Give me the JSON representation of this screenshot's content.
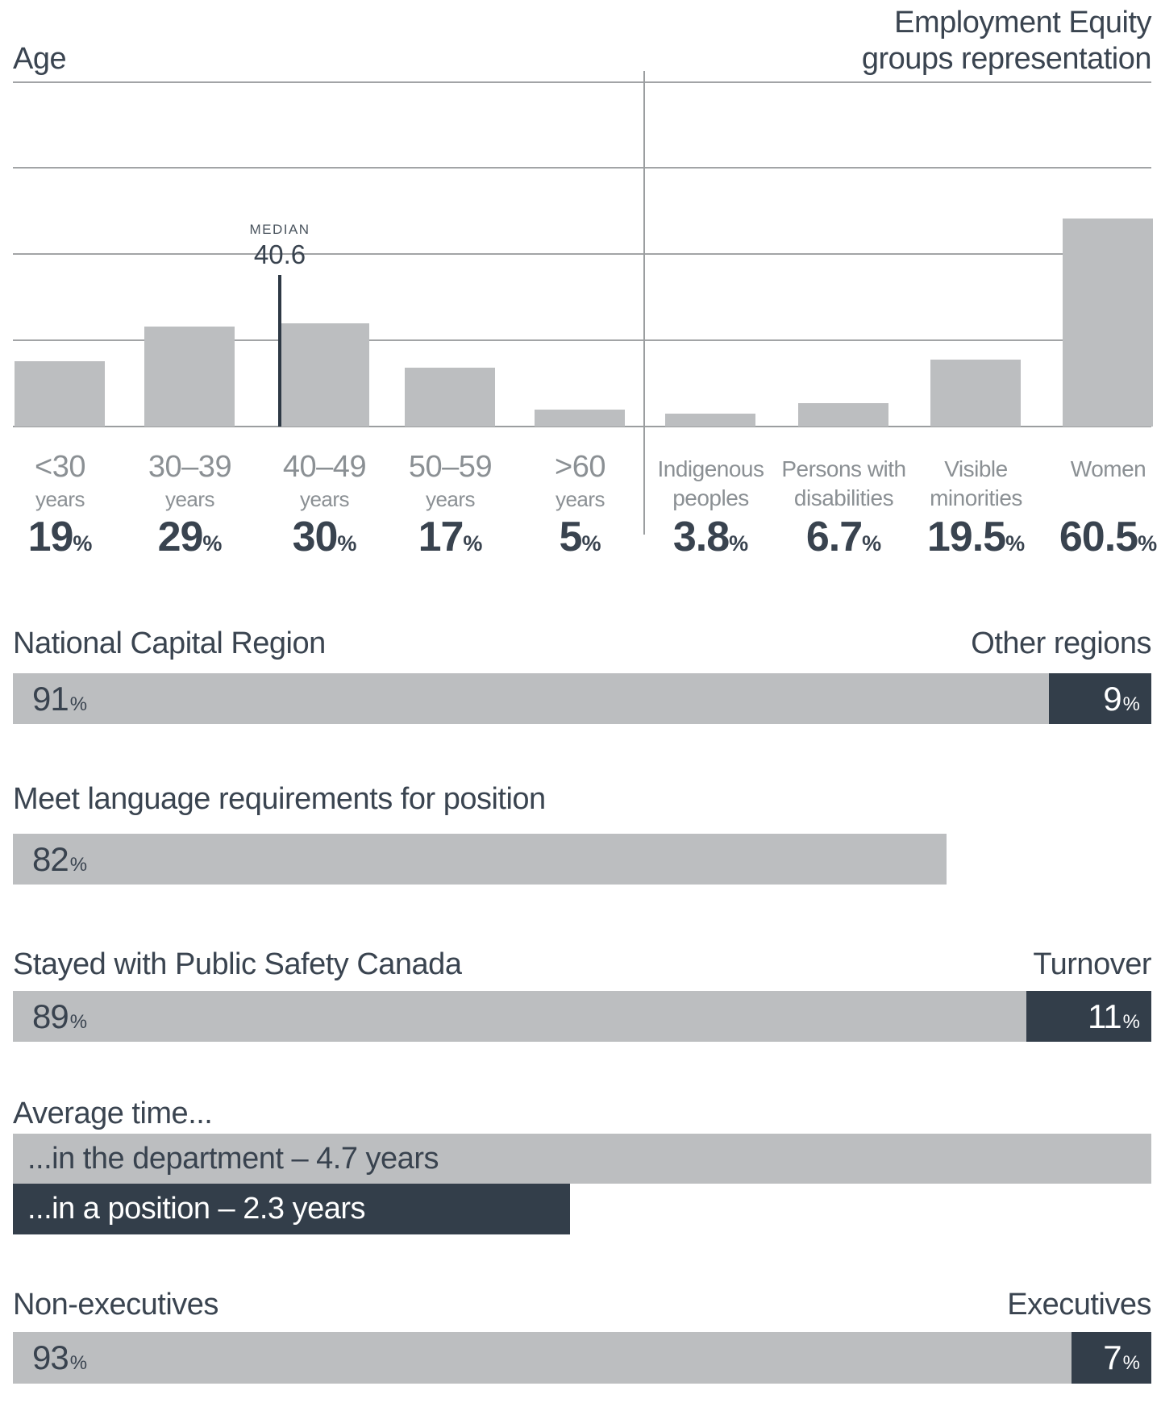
{
  "percent_sign": "%",
  "colors": {
    "bar_light": "#bcbec0",
    "bar_dark": "#333e4a",
    "text_dark": "#3a4450",
    "text_gray": "#8b9094",
    "gridline": "#9b9ea0",
    "median_line": "#2e3945",
    "white": "#ffffff"
  },
  "chart_data": [
    {
      "type": "bar",
      "title": "Age",
      "categories": [
        "<30 years",
        "30–39 years",
        "40–49 years",
        "50–59 years",
        ">60 years"
      ],
      "category_lines": [
        [
          "<30",
          "years"
        ],
        [
          "30–39",
          "years"
        ],
        [
          "40–49",
          "years"
        ],
        [
          "50–59",
          "years"
        ],
        [
          ">60",
          "years"
        ]
      ],
      "values": [
        19,
        29,
        30,
        17,
        5
      ],
      "value_labels": [
        "19",
        "29",
        "30",
        "17",
        "5"
      ],
      "unit": "%",
      "ylim": [
        0,
        100
      ],
      "gridline_step": 25,
      "grid": true,
      "median": {
        "label": "MEDIAN",
        "value": "40.6"
      }
    },
    {
      "type": "bar",
      "title": "Employment Equity groups representation",
      "title_lines": [
        "Employment Equity",
        "groups representation"
      ],
      "categories": [
        "Indigenous peoples",
        "Persons with disabilities",
        "Visible minorities",
        "Women"
      ],
      "category_lines": [
        [
          "Indigenous",
          "peoples"
        ],
        [
          "Persons with",
          "disabilities"
        ],
        [
          "Visible",
          "minorities"
        ],
        [
          "Women"
        ]
      ],
      "values": [
        3.8,
        6.7,
        19.5,
        60.5
      ],
      "value_labels": [
        "3.8",
        "6.7",
        "19.5",
        "60.5"
      ],
      "unit": "%",
      "ylim": [
        0,
        100
      ]
    },
    {
      "type": "stacked-bar",
      "title_left": "National Capital Region",
      "title_right": "Other regions",
      "unit": "%",
      "segments": [
        {
          "label": "91",
          "value": 91,
          "color": "light"
        },
        {
          "label": "9",
          "value": 9,
          "color": "dark"
        }
      ]
    },
    {
      "type": "stacked-bar",
      "title_left": "Meet language requirements for position",
      "title_right": "",
      "unit": "%",
      "segments": [
        {
          "label": "82",
          "value": 82,
          "color": "light"
        }
      ]
    },
    {
      "type": "stacked-bar",
      "title_left": "Stayed with Public Safety Canada",
      "title_right": "Turnover",
      "unit": "%",
      "segments": [
        {
          "label": "89",
          "value": 89,
          "color": "light"
        },
        {
          "label": "11",
          "value": 11,
          "color": "dark"
        }
      ]
    },
    {
      "type": "labeled-bars",
      "title_left": "Average time...",
      "bars": [
        {
          "text": "...in the department – 4.7 years",
          "value": 4.7,
          "max": 4.7,
          "color": "light"
        },
        {
          "text": "...in a position – 2.3 years",
          "value": 2.3,
          "max": 4.7,
          "color": "dark"
        }
      ]
    },
    {
      "type": "stacked-bar",
      "title_left": "Non-executives",
      "title_right": "Executives",
      "unit": "%",
      "segments": [
        {
          "label": "93",
          "value": 93,
          "color": "light"
        },
        {
          "label": "7",
          "value": 7,
          "color": "dark"
        }
      ]
    }
  ]
}
